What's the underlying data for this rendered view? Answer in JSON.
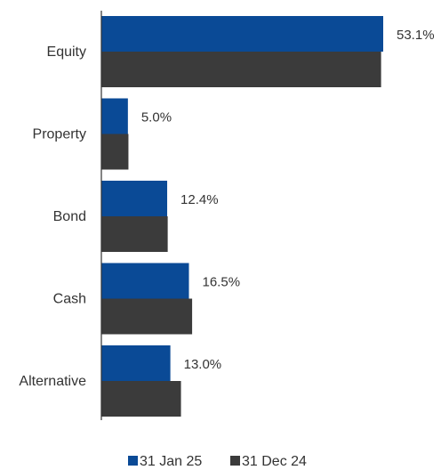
{
  "chart_data": {
    "type": "bar",
    "orientation": "horizontal",
    "categories": [
      "Equity",
      "Property",
      "Bond",
      "Cash",
      "Alternative"
    ],
    "series": [
      {
        "name": "31 Jan 25",
        "values": [
          53.1,
          5.0,
          12.4,
          16.5,
          13.0
        ],
        "value_labels": [
          "53.1%",
          "5.0%",
          "12.4%",
          "16.5%",
          "13.0%"
        ],
        "color": "#0a4a96"
      },
      {
        "name": "31 Dec 24",
        "values": [
          52.7,
          5.1,
          12.5,
          17.1,
          15.0
        ],
        "color": "#3b3b3b"
      }
    ],
    "unit": "%",
    "xlim": [
      0,
      60
    ],
    "grid": false,
    "legend_position": "bottom"
  }
}
